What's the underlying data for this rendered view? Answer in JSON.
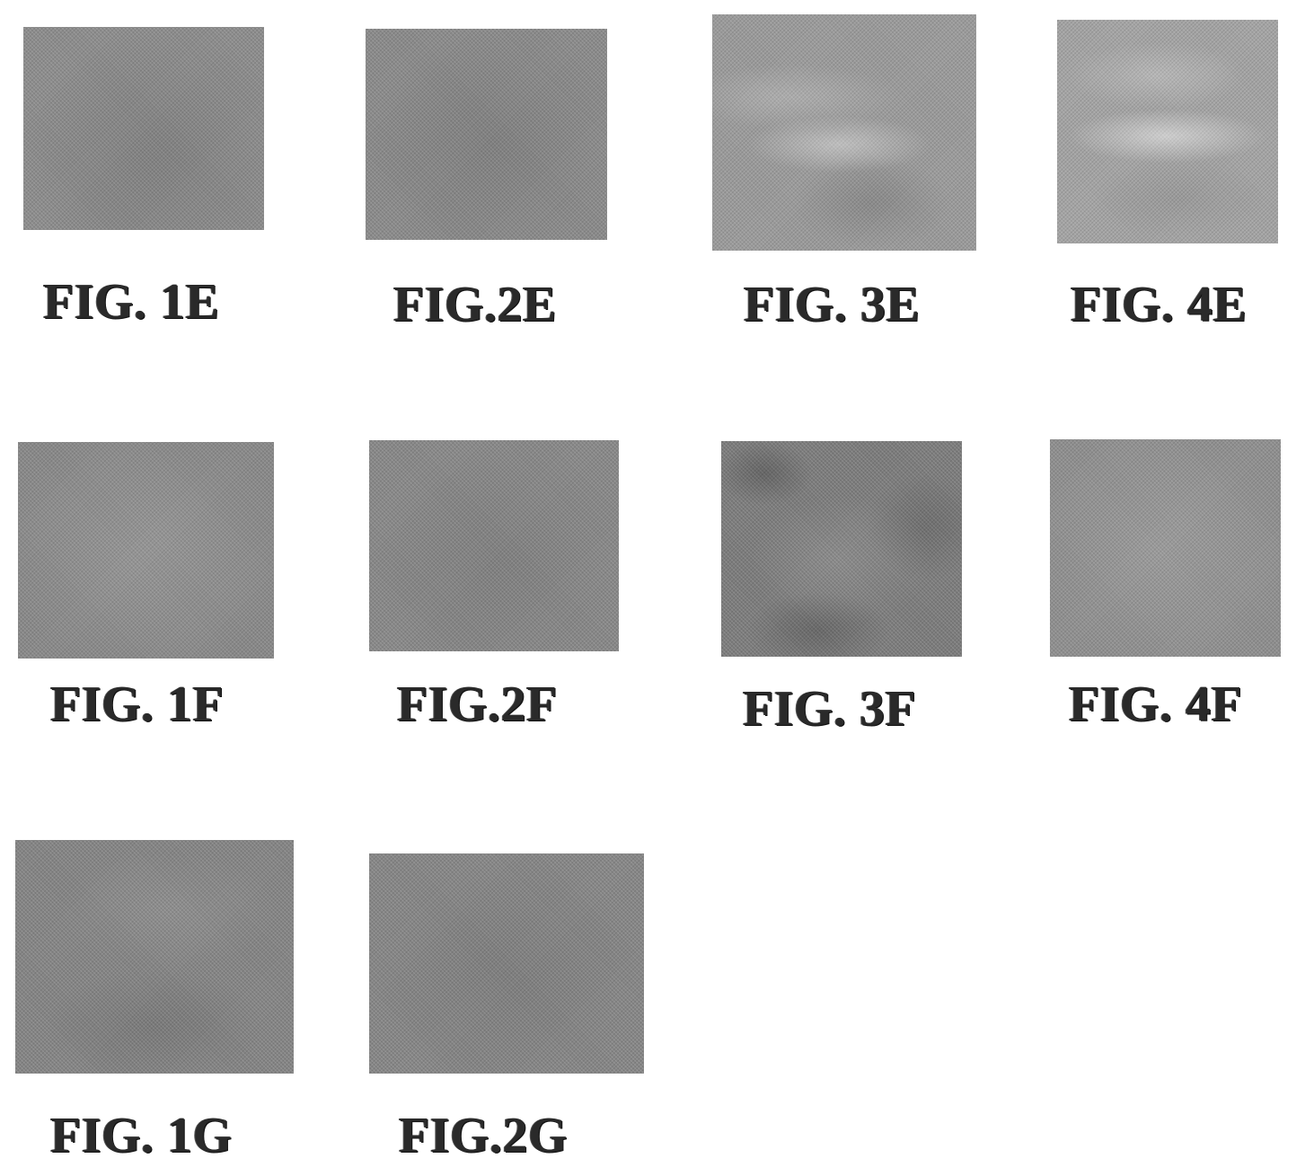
{
  "figures": [
    {
      "id": "1e",
      "label": "FIG. 1E"
    },
    {
      "id": "2e",
      "label": "FIG.2E"
    },
    {
      "id": "3e",
      "label": "FIG. 3E"
    },
    {
      "id": "4e",
      "label": "FIG. 4E"
    },
    {
      "id": "1f",
      "label": "FIG. 1F"
    },
    {
      "id": "2f",
      "label": "FIG.2F"
    },
    {
      "id": "3f",
      "label": "FIG. 3F"
    },
    {
      "id": "4f",
      "label": "FIG. 4F"
    },
    {
      "id": "1g",
      "label": "FIG. 1G"
    },
    {
      "id": "2g",
      "label": "FIG.2G"
    }
  ]
}
